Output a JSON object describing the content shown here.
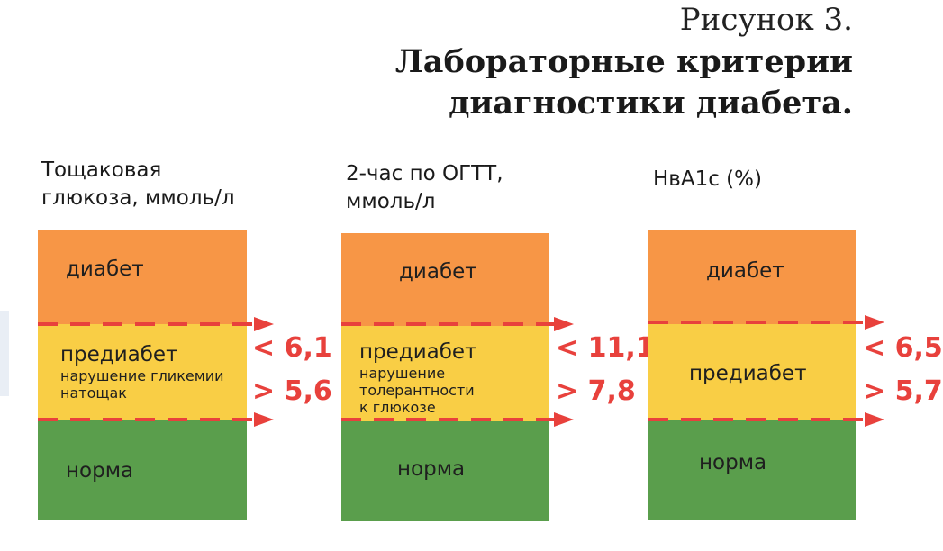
{
  "figure": {
    "label": "Рисунок 3.",
    "title": "Лабораторные критерии диагностики диабета."
  },
  "columns": [
    {
      "heading_lines": [
        "Тощаковая",
        "глюкоза, ммоль/л"
      ],
      "zones": {
        "diabetes": "диабет",
        "prediabetes": "предиабет",
        "prediabetes_note_lines": [
          "нарушение гликемии",
          "натощак"
        ],
        "normal": "норма"
      },
      "upper_threshold": "< 6,1",
      "lower_threshold": "> 5,6"
    },
    {
      "heading_lines": [
        "2-час по ОГТТ,",
        "ммоль/л"
      ],
      "zones": {
        "diabetes": "диабет",
        "prediabetes": "предиабет",
        "prediabetes_note_lines": [
          "нарушение",
          "толерантности",
          "к глюкозе"
        ],
        "normal": "норма"
      },
      "upper_threshold": "< 11,1",
      "lower_threshold": "> 7,8"
    },
    {
      "heading_lines": [
        "НвА1с (%)"
      ],
      "zones": {
        "diabetes": "диабет",
        "prediabetes": "предиабет",
        "prediabetes_note_lines": [],
        "normal": "норма"
      },
      "upper_threshold": "< 6,5",
      "lower_threshold": "> 5,7"
    }
  ],
  "colors": {
    "diabetes": "#f79646",
    "prediabetes": "#f9ce45",
    "normal": "#5a9e4c",
    "threshold": "#e8413c"
  }
}
